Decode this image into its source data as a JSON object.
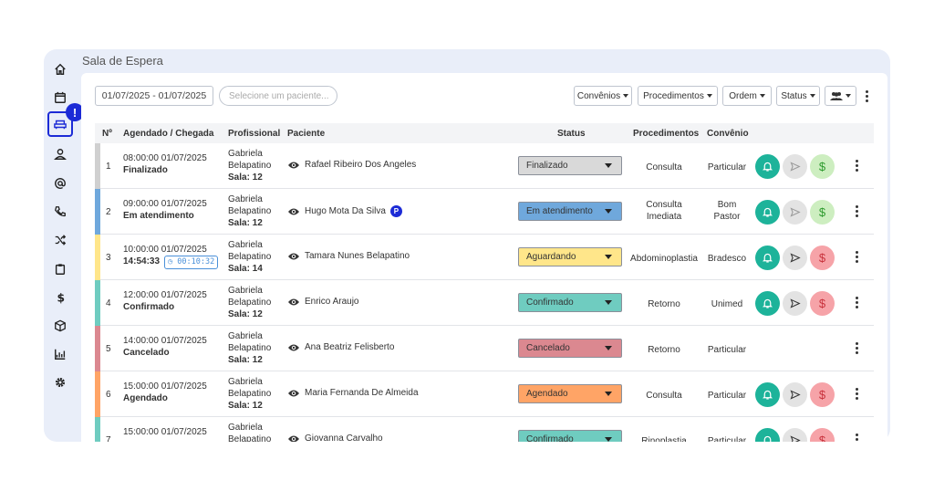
{
  "page": {
    "title": "Sala de Espera"
  },
  "sidebar": {
    "items": [
      {
        "icon": "home-icon"
      },
      {
        "icon": "calendar-icon"
      },
      {
        "icon": "sofa-icon",
        "active": true,
        "badge": "!"
      },
      {
        "icon": "user-icon"
      },
      {
        "icon": "at-icon"
      },
      {
        "icon": "phone-icon"
      },
      {
        "icon": "shuffle-icon"
      },
      {
        "icon": "clipboard-icon"
      },
      {
        "icon": "dollar-icon"
      },
      {
        "icon": "cube-icon"
      },
      {
        "icon": "chart-icon"
      },
      {
        "icon": "gear-icon"
      }
    ]
  },
  "toolbar": {
    "date_range": "01/07/2025 - 01/07/2025",
    "search_placeholder": "Selecione um paciente...",
    "convenios": "Convênios",
    "procedimentos": "Procedimentos",
    "ordem": "Ordem",
    "status": "Status"
  },
  "table": {
    "headers": {
      "num": "Nº",
      "agendado": "Agendado / Chegada",
      "profissional": "Profissional",
      "paciente": "Paciente",
      "status": "Status",
      "procedimentos": "Procedimentos",
      "convenio": "Convênio"
    },
    "rows": [
      {
        "num": "1",
        "agendado": "08:00:00 01/07/2025",
        "chegada": "Finalizado",
        "timer": "",
        "prof1": "Gabriela",
        "prof2": "Belapatino",
        "sala": "Sala: 12",
        "paciente": "Rafael Ribeiro Dos Angeles",
        "badge": "",
        "status": "Finalizado",
        "status_color": "#d9d9d9",
        "stripe": "#d0d0d0",
        "proc1": "Consulta",
        "proc2": "",
        "conv1": "Particular",
        "conv2": "",
        "bell": "#1db39a",
        "send": "#e3e3e3",
        "send_fg": "#999",
        "money": "#cdeec0",
        "money_fg": "#2d9a2d",
        "actions": true
      },
      {
        "num": "2",
        "agendado": "09:00:00 01/07/2025",
        "chegada": "Em atendimento",
        "timer": "",
        "prof1": "Gabriela",
        "prof2": "Belapatino",
        "sala": "Sala: 12",
        "paciente": "Hugo Mota Da Silva",
        "badge": "P",
        "status": "Em atendimento",
        "status_color": "#6fa8dc",
        "stripe": "#6fa8dc",
        "proc1": "Consulta",
        "proc2": "Imediata",
        "conv1": "Bom",
        "conv2": "Pastor",
        "bell": "#1db39a",
        "send": "#e3e3e3",
        "send_fg": "#999",
        "money": "#cdeec0",
        "money_fg": "#2d9a2d",
        "actions": true
      },
      {
        "num": "3",
        "agendado": "10:00:00 01/07/2025",
        "chegada": "14:54:33",
        "timer": "00:10:32",
        "prof1": "Gabriela",
        "prof2": "Belapatino",
        "sala": "Sala: 14",
        "paciente": "Tamara Nunes Belapatino",
        "badge": "",
        "status": "Aguardando",
        "status_color": "#ffe68a",
        "stripe": "#ffe68a",
        "proc1": "Abdominoplastia",
        "proc2": "",
        "conv1": "Bradesco",
        "conv2": "",
        "bell": "#1db39a",
        "send": "#e3e3e3",
        "send_fg": "#333",
        "money": "#f6a3a8",
        "money_fg": "#c8323c",
        "actions": true
      },
      {
        "num": "4",
        "agendado": "12:00:00 01/07/2025",
        "chegada": "Confirmado",
        "timer": "",
        "prof1": "Gabriela",
        "prof2": "Belapatino",
        "sala": "Sala: 12",
        "paciente": "Enrico Araujo",
        "badge": "",
        "status": "Confirmado",
        "status_color": "#6fccc0",
        "stripe": "#6fccc0",
        "proc1": "Retorno",
        "proc2": "",
        "conv1": "Unimed",
        "conv2": "",
        "bell": "#1db39a",
        "send": "#e3e3e3",
        "send_fg": "#333",
        "money": "#f6a3a8",
        "money_fg": "#c8323c",
        "actions": true
      },
      {
        "num": "5",
        "agendado": "14:00:00 01/07/2025",
        "chegada": "Cancelado",
        "timer": "",
        "prof1": "Gabriela",
        "prof2": "Belapatino",
        "sala": "Sala: 12",
        "paciente": "Ana Beatriz Felisberto",
        "badge": "",
        "status": "Cancelado",
        "status_color": "#db8890",
        "stripe": "#db8890",
        "proc1": "Retorno",
        "proc2": "",
        "conv1": "Particular",
        "conv2": "",
        "actions": false
      },
      {
        "num": "6",
        "agendado": "15:00:00 01/07/2025",
        "chegada": "Agendado",
        "timer": "",
        "prof1": "Gabriela",
        "prof2": "Belapatino",
        "sala": "Sala: 12",
        "paciente": "Maria Fernanda De Almeida",
        "badge": "",
        "status": "Agendado",
        "status_color": "#ffa466",
        "stripe": "#ffa466",
        "proc1": "Consulta",
        "proc2": "",
        "conv1": "Particular",
        "conv2": "",
        "bell": "#1db39a",
        "send": "#e3e3e3",
        "send_fg": "#333",
        "money": "#f6a3a8",
        "money_fg": "#c8323c",
        "actions": true
      },
      {
        "num": "7",
        "agendado": "15:00:00 01/07/2025",
        "chegada": "",
        "timer": "",
        "prof1": "Gabriela",
        "prof2": "Belapatino",
        "sala": "",
        "paciente": "Giovanna Carvalho",
        "badge": "",
        "status": "Confirmado",
        "status_color": "#6fccc0",
        "stripe": "#6fccc0",
        "proc1": "Rinoplastia",
        "proc2": "",
        "conv1": "Particular",
        "conv2": "",
        "bell": "#1db39a",
        "send": "#e3e3e3",
        "send_fg": "#333",
        "money": "#f6a3a8",
        "money_fg": "#c8323c",
        "actions": true
      }
    ]
  }
}
